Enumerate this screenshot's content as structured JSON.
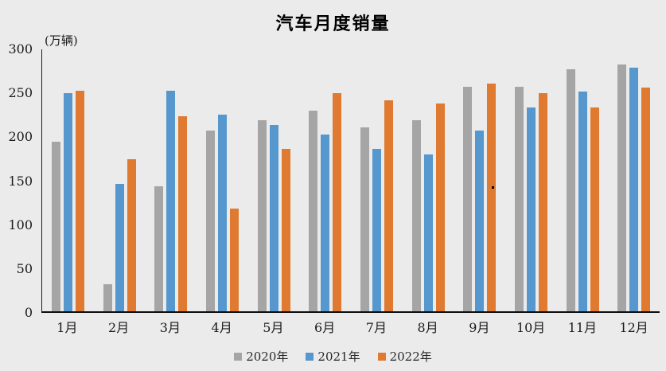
{
  "colors": {
    "background": "#ebebeb",
    "axis": "#1f1f1f",
    "text": "#1a1a1a",
    "series_2020": "#a5a5a5",
    "series_2021": "#5697ce",
    "series_2022": "#df7a30"
  },
  "chart_data": {
    "type": "bar",
    "title": "汽车月度销量",
    "unit_label": "(万辆)",
    "xlabel": "",
    "ylabel": "(万辆)",
    "categories": [
      "1月",
      "2月",
      "3月",
      "4月",
      "5月",
      "6月",
      "7月",
      "8月",
      "9月",
      "10月",
      "11月",
      "12月"
    ],
    "series": [
      {
        "name": "2020年",
        "color": "#a5a5a5",
        "values": [
          194,
          31,
          143,
          207,
          219,
          230,
          211,
          219,
          257,
          257,
          277,
          283
        ]
      },
      {
        "name": "2021年",
        "color": "#5697ce",
        "values": [
          250,
          146,
          253,
          225,
          213,
          202,
          186,
          180,
          207,
          233,
          252,
          279
        ]
      },
      {
        "name": "2022年",
        "color": "#df7a30",
        "values": [
          253,
          174,
          223,
          118,
          186,
          250,
          242,
          238,
          261,
          250,
          233,
          256
        ]
      }
    ],
    "ylim": [
      0,
      300
    ],
    "yticks": [
      0,
      50,
      100,
      150,
      200,
      250,
      300
    ],
    "grid": false,
    "legend_position": "bottom"
  }
}
